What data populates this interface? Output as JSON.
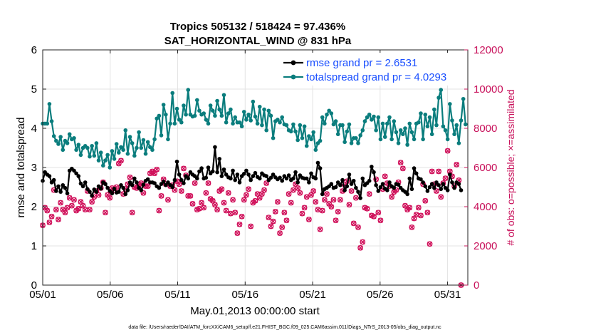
{
  "chart_data": {
    "type": "line",
    "title_line1": "Tropics 505132 / 518424 = 97.436%",
    "title_line2": "SAT_HORIZONTAL_WIND @ 831 hPa",
    "xlabel": "May.01,2013 00:00:00 start",
    "ylabel_left": "rmse and totalspread",
    "ylabel_right": "# of obs: o=possible; ×=assimilated",
    "x_ticks": [
      "05/01",
      "05/06",
      "05/11",
      "05/16",
      "05/21",
      "05/26",
      "05/31"
    ],
    "y_ticks_left": [
      "0",
      "1",
      "2",
      "3",
      "4",
      "5",
      "6"
    ],
    "y_ticks_right": [
      "0",
      "2000",
      "4000",
      "6000",
      "8000",
      "10000",
      "12000"
    ],
    "xlim_days": [
      0,
      31.5
    ],
    "ylim_left": [
      0,
      6
    ],
    "ylim_right": [
      0,
      12000
    ],
    "footer": "data file: /Users/raeder/DAI/ATM_forcXX/CAM6_setup/f.e21.FHIST_BGC.f09_025.CAM6assim.011/Diags_NTrS_2013-05/obs_diag_output.nc",
    "series": [
      {
        "name": "rmse grand pr = 2.6531",
        "color": "#000000",
        "axis": "left",
        "values": [
          2.66,
          2.88,
          2.82,
          2.78,
          2.62,
          2.68,
          2.4,
          2.52,
          2.38,
          2.55,
          2.48,
          2.34,
          2.92,
          2.97,
          2.92,
          2.85,
          2.78,
          2.59,
          2.52,
          2.62,
          2.45,
          2.38,
          2.28,
          2.44,
          2.38,
          2.52,
          2.46,
          2.62,
          2.58,
          2.48,
          2.4,
          2.34,
          2.46,
          2.36,
          2.38,
          2.55,
          2.48,
          2.32,
          2.42,
          2.62,
          2.55,
          2.72,
          2.62,
          2.48,
          2.42,
          2.56,
          2.66,
          2.7,
          2.62,
          2.62,
          2.6,
          2.52,
          2.48,
          2.58,
          2.64,
          2.55,
          2.62,
          2.55,
          2.5,
          2.68,
          3.15,
          2.82,
          2.68,
          2.6,
          2.78,
          2.72,
          2.88,
          2.82,
          2.78,
          2.72,
          2.9,
          2.98,
          2.72,
          2.74,
          3.0,
          2.85,
          2.9,
          3.52,
          2.88,
          3.22,
          2.78,
          2.95,
          2.82,
          2.75,
          2.72,
          2.92,
          2.68,
          2.82,
          2.62,
          2.78,
          2.84,
          2.92,
          2.82,
          2.68,
          2.78,
          2.86,
          2.76,
          2.72,
          2.85,
          2.8,
          2.78,
          2.68,
          2.74,
          2.82,
          2.75,
          2.7,
          2.74,
          2.66,
          2.78,
          2.72,
          2.8,
          2.68,
          2.72,
          2.88,
          2.62,
          2.8,
          2.74,
          2.72,
          2.72,
          2.62,
          2.85,
          2.75,
          2.72,
          3.12,
          2.98,
          2.32,
          2.45,
          2.48,
          2.52,
          2.58,
          2.48,
          2.5,
          2.62,
          2.55,
          2.68,
          2.42,
          2.52,
          2.82,
          2.58,
          2.66,
          2.48,
          2.38,
          2.22,
          2.72,
          2.55,
          2.6,
          2.66,
          3.02,
          2.88,
          2.55,
          2.4,
          2.5,
          2.58,
          2.46,
          2.42,
          2.62,
          2.52,
          2.48,
          2.58,
          2.56,
          2.48,
          2.42,
          2.38,
          2.32,
          2.72,
          2.45,
          2.98,
          2.85,
          2.72,
          2.7,
          2.62,
          2.52,
          2.4,
          2.5,
          2.58,
          2.48,
          2.62,
          2.55,
          2.45,
          2.58,
          2.48,
          2.42,
          2.82,
          2.62,
          2.48,
          2.62,
          2.58,
          2.42
        ]
      },
      {
        "name": "totalspread grand pr = 4.0293",
        "color": "#0a7d7d",
        "axis": "left",
        "values": [
          4.12,
          4.12,
          4.12,
          4.62,
          4.18,
          3.8,
          3.68,
          3.6,
          3.78,
          3.45,
          3.68,
          3.62,
          3.85,
          3.72,
          3.75,
          3.45,
          3.58,
          3.32,
          3.5,
          3.55,
          3.5,
          3.28,
          3.55,
          3.3,
          3.62,
          3.18,
          3.38,
          3.05,
          3.18,
          3.32,
          3.0,
          3.42,
          3.22,
          3.6,
          3.38,
          3.52,
          3.45,
          3.95,
          3.35,
          3.78,
          3.62,
          3.3,
          3.5,
          3.9,
          3.5,
          3.7,
          3.35,
          3.65,
          3.52,
          3.45,
          3.72,
          4.25,
          4.32,
          3.82,
          4.6,
          4.35,
          3.72,
          4.12,
          4.9,
          4.12,
          4.5,
          4.22,
          4.15,
          4.58,
          4.35,
          4.98,
          4.35,
          4.3,
          4.32,
          4.72,
          4.45,
          4.35,
          4.38,
          4.22,
          4.12,
          4.58,
          4.45,
          4.32,
          4.7,
          4.48,
          4.32,
          4.85,
          4.15,
          4.38,
          4.48,
          4.12,
          4.28,
          4.15,
          4.15,
          4.05,
          4.42,
          4.22,
          4.35,
          4.2,
          4.68,
          4.3,
          4.12,
          4.55,
          4.08,
          4.48,
          3.95,
          4.45,
          4.32,
          3.75,
          4.18,
          4.22,
          4.15,
          4.28,
          4.1,
          4.08,
          3.95,
          3.92,
          4.1,
          3.92,
          3.7,
          4.08,
          3.75,
          4.05,
          3.55,
          3.8,
          3.72,
          3.9,
          3.45,
          3.62,
          3.68,
          4.28,
          4.12,
          4.35,
          4.45,
          4.38,
          4.1,
          4.18,
          3.85,
          4.08,
          4.08,
          3.65,
          3.92,
          4.1,
          3.62,
          3.75,
          3.75,
          3.62,
          3.82,
          3.95,
          4.18,
          4.28,
          4.35,
          4.22,
          4.3,
          3.95,
          4.28,
          3.72,
          4.12,
          3.78,
          4.12,
          4.28,
          3.72,
          4.18,
          3.9,
          3.62,
          3.95,
          3.85,
          4.0,
          3.58,
          4.12,
          3.9,
          3.72,
          4.12,
          4.15,
          4.38,
          3.72,
          4.35,
          4.05,
          4.28,
          3.85,
          4.48,
          4.08,
          4.78,
          4.98,
          4.05,
          3.95,
          3.72,
          4.62,
          4.2,
          3.85,
          4.08,
          3.62,
          4.2,
          4.75,
          4.1
        ]
      },
      {
        "name": "# of obs possible",
        "color": "#d0105a",
        "axis": "right",
        "values": [
          3050,
          3950,
          3800,
          3200,
          3500,
          4850,
          3850,
          3350,
          4200,
          3850,
          3700,
          3950,
          4450,
          4050,
          4350,
          3800,
          3900,
          4250,
          4050,
          3850,
          4800,
          3850,
          4250,
          4500,
          4800,
          4600,
          4950,
          5250,
          3700,
          4600,
          4450,
          4950,
          4850,
          5000,
          6200,
          6350,
          4650,
          4900,
          5150,
          5500,
          3700,
          5000,
          4950,
          5100,
          5200,
          4700,
          5050,
          5050,
          5700,
          5800,
          5700,
          5900,
          3800,
          4550,
          5400,
          5150,
          4350,
          5050,
          5100,
          4850,
          5300,
          5150,
          4800,
          5950,
          5600,
          4550,
          4550,
          4150,
          5200,
          3850,
          3900,
          4200,
          3950,
          4700,
          5200,
          4400,
          4300,
          4100,
          3850,
          4800,
          4900,
          4200,
          3800,
          4700,
          3650,
          4350,
          3700,
          2650,
          3100,
          3500,
          4350,
          4600,
          4900,
          3000,
          4200,
          4300,
          4650,
          4450,
          4650,
          4850,
          5200,
          3450,
          3000,
          3250,
          3750,
          4250,
          2650,
          2950,
          3700,
          3300,
          4650,
          4200,
          4850,
          5150,
          4950,
          4700,
          3650,
          3950,
          4500,
          3350,
          4600,
          4800,
          4250,
          3850,
          2850,
          3800,
          4350,
          4650,
          4150,
          4000,
          4350,
          3300,
          3750,
          4350,
          4800,
          5100,
          5300,
          4100,
          4800,
          3150,
          4450,
          2950,
          1900,
          2200,
          3950,
          3900,
          4650,
          3550,
          3500,
          5400,
          3700,
          3300,
          4900,
          5550,
          5200,
          5050,
          4500,
          4750,
          4850,
          5250,
          6250,
          5950,
          4050,
          3850,
          3950,
          2950,
          3400,
          3600,
          3950,
          3550,
          5150,
          4300,
          3700,
          2100,
          5800,
          5150,
          4800,
          5800,
          4500,
          5200,
          5450,
          6850,
          5800,
          5550,
          5050,
          6150,
          5350,
          0
        ]
      },
      {
        "name": "# of obs assimilated",
        "color": "#d0105a",
        "axis": "right",
        "values": [
          3050,
          3950,
          3800,
          3200,
          3500,
          4850,
          3850,
          3350,
          4200,
          3850,
          3700,
          3950,
          4450,
          4050,
          4350,
          3800,
          3900,
          4250,
          4050,
          3850,
          4800,
          3850,
          4250,
          4500,
          4800,
          4600,
          4950,
          5250,
          3700,
          4600,
          4450,
          4950,
          4850,
          5000,
          6200,
          6350,
          4650,
          4900,
          5150,
          5500,
          3700,
          5000,
          4950,
          5100,
          5200,
          4700,
          5050,
          5050,
          5700,
          5800,
          5700,
          5900,
          3800,
          4550,
          5400,
          5150,
          4350,
          5050,
          5100,
          4850,
          5300,
          5150,
          4800,
          5950,
          5600,
          4550,
          4550,
          4150,
          5200,
          3850,
          3900,
          4200,
          3950,
          4700,
          5200,
          4400,
          4300,
          4100,
          3850,
          4800,
          4900,
          4200,
          3800,
          4700,
          3650,
          4350,
          3700,
          2650,
          3100,
          3500,
          4350,
          4600,
          4900,
          3000,
          4200,
          4300,
          4650,
          4450,
          4650,
          4850,
          5200,
          3450,
          3000,
          3250,
          3750,
          4250,
          2650,
          2950,
          3700,
          3300,
          4650,
          4200,
          4850,
          5150,
          4950,
          4700,
          3650,
          3950,
          4500,
          3350,
          4600,
          4800,
          4250,
          3850,
          2850,
          3800,
          4350,
          4650,
          4150,
          4000,
          4350,
          3300,
          3750,
          4350,
          4800,
          5100,
          5300,
          4100,
          4800,
          3150,
          4450,
          2950,
          1900,
          2200,
          3950,
          3900,
          4650,
          3550,
          3500,
          5400,
          3700,
          3300,
          4900,
          5550,
          5200,
          5050,
          4500,
          4750,
          4850,
          5250,
          6250,
          5950,
          4050,
          3850,
          3950,
          2950,
          3400,
          3600,
          3950,
          3550,
          5150,
          4300,
          3700,
          2100,
          5800,
          5150,
          4800,
          5800,
          4500,
          5200,
          5450,
          6850,
          5800,
          5550,
          5050,
          6150,
          5350,
          0
        ]
      }
    ]
  }
}
